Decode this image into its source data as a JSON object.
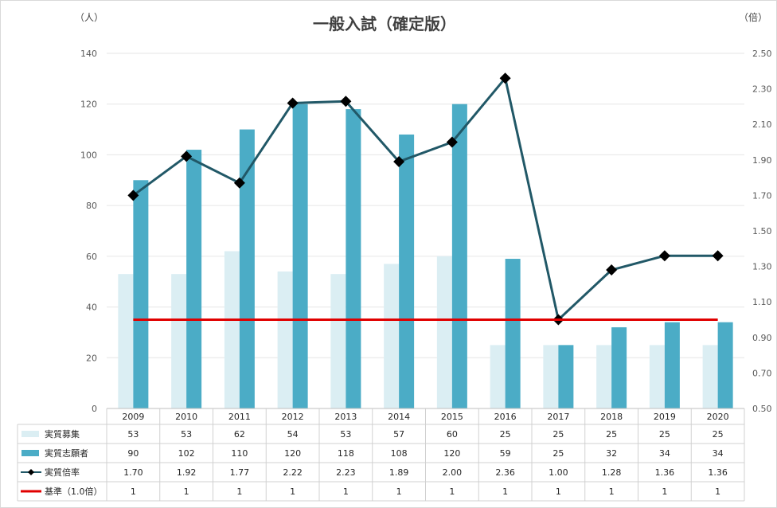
{
  "chart_data": {
    "type": "bar",
    "title": "一般入試（確定版）",
    "left_unit": "（人）",
    "right_unit": "（倍）",
    "categories": [
      "2009",
      "2010",
      "2011",
      "2012",
      "2013",
      "2014",
      "2015",
      "2016",
      "2017",
      "2018",
      "2019",
      "2020"
    ],
    "ylim": [
      0,
      140
    ],
    "y_ticks": [
      "0",
      "20",
      "40",
      "60",
      "80",
      "100",
      "120",
      "140"
    ],
    "y2lim": [
      0.5,
      2.5
    ],
    "y2_ticks": [
      "0.50",
      "0.70",
      "0.90",
      "1.10",
      "1.30",
      "1.50",
      "1.70",
      "1.90",
      "2.10",
      "2.30",
      "2.50"
    ],
    "grid": true,
    "legend": "data-table",
    "series": [
      {
        "name": "実質募集",
        "kind": "bar",
        "axis": "left",
        "color": "#dbeef3",
        "values": [
          53,
          53,
          62,
          54,
          53,
          57,
          60,
          25,
          25,
          25,
          25,
          25
        ],
        "labels": [
          "53",
          "53",
          "62",
          "54",
          "53",
          "57",
          "60",
          "25",
          "25",
          "25",
          "25",
          "25"
        ]
      },
      {
        "name": "実質志願者",
        "kind": "bar",
        "axis": "left",
        "color": "#4bacc6",
        "values": [
          90,
          102,
          110,
          120,
          118,
          108,
          120,
          59,
          25,
          32,
          34,
          34
        ],
        "labels": [
          "90",
          "102",
          "110",
          "120",
          "118",
          "108",
          "120",
          "59",
          "25",
          "32",
          "34",
          "34"
        ]
      },
      {
        "name": "実質倍率",
        "kind": "line",
        "axis": "right",
        "color": "#215867",
        "marker": "diamond",
        "values": [
          1.7,
          1.92,
          1.77,
          2.22,
          2.23,
          1.89,
          2.0,
          2.36,
          1.0,
          1.28,
          1.36,
          1.36
        ],
        "labels": [
          "1.70",
          "1.92",
          "1.77",
          "2.22",
          "2.23",
          "1.89",
          "2.00",
          "2.36",
          "1.00",
          "1.28",
          "1.36",
          "1.36"
        ]
      },
      {
        "name": "基準（1.0倍）",
        "kind": "line",
        "axis": "right",
        "color": "#e00000",
        "values": [
          1,
          1,
          1,
          1,
          1,
          1,
          1,
          1,
          1,
          1,
          1,
          1
        ],
        "labels": [
          "1",
          "1",
          "1",
          "1",
          "1",
          "1",
          "1",
          "1",
          "1",
          "1",
          "1",
          "1"
        ]
      }
    ]
  }
}
